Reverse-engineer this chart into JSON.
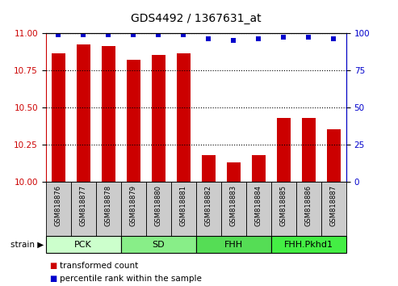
{
  "title": "GDS4492 / 1367631_at",
  "samples": [
    "GSM818876",
    "GSM818877",
    "GSM818878",
    "GSM818879",
    "GSM818880",
    "GSM818881",
    "GSM818882",
    "GSM818883",
    "GSM818884",
    "GSM818885",
    "GSM818886",
    "GSM818887"
  ],
  "transformed_counts": [
    10.86,
    10.92,
    10.91,
    10.82,
    10.85,
    10.86,
    10.18,
    10.13,
    10.18,
    10.43,
    10.43,
    10.35
  ],
  "percentile_ranks": [
    99,
    99,
    99,
    99,
    99,
    99,
    96,
    95,
    96,
    97,
    97,
    96
  ],
  "ylim_left": [
    10.0,
    11.0
  ],
  "ylim_right": [
    0,
    100
  ],
  "yticks_left": [
    10.0,
    10.25,
    10.5,
    10.75,
    11.0
  ],
  "yticks_right": [
    0,
    25,
    50,
    75,
    100
  ],
  "bar_color": "#cc0000",
  "dot_color": "#0000cc",
  "groups": [
    {
      "label": "PCK",
      "start": 0,
      "end": 3,
      "color": "#ccffcc"
    },
    {
      "label": "SD",
      "start": 3,
      "end": 6,
      "color": "#88ee88"
    },
    {
      "label": "FHH",
      "start": 6,
      "end": 9,
      "color": "#55dd55"
    },
    {
      "label": "FHH.Pkhd1",
      "start": 9,
      "end": 12,
      "color": "#44ee44"
    }
  ],
  "sample_box_color": "#cccccc",
  "left_axis_color": "#cc0000",
  "right_axis_color": "#0000cc",
  "legend_items": [
    {
      "label": "transformed count",
      "color": "#cc0000"
    },
    {
      "label": "percentile rank within the sample",
      "color": "#0000cc"
    }
  ],
  "strain_label": "strain"
}
